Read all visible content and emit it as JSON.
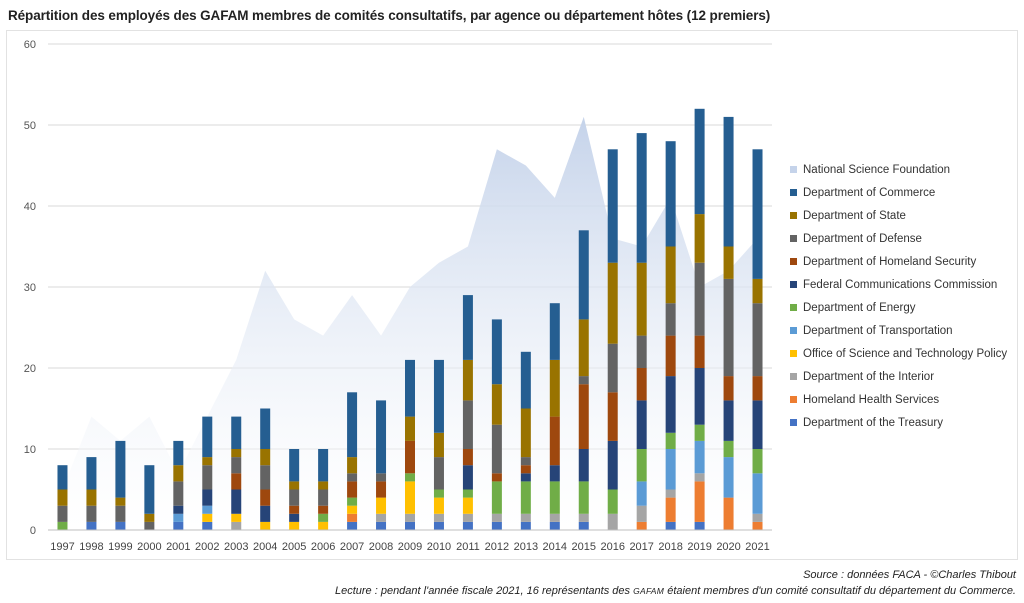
{
  "title": "Répartition des employés des GAFAM membres de comités consultatifs, par agence ou département hôtes (12 premiers)",
  "source": "Source : données FACA - ©Charles Thibout",
  "note": {
    "before": "Lecture : pendant l'année fiscale 2021, 16 représentants des",
    "acronym": "GAFAM",
    "after": "étaient membres d'un comité consultatif du département du Commerce."
  },
  "chart_data": {
    "type": "bar",
    "stacked": true,
    "categories": [
      "1997",
      "1998",
      "1999",
      "2000",
      "2001",
      "2002",
      "2003",
      "2004",
      "2005",
      "2006",
      "2007",
      "2008",
      "2009",
      "2010",
      "2011",
      "2012",
      "2013",
      "2014",
      "2015",
      "2016",
      "2017",
      "2018",
      "2019",
      "2020",
      "2021"
    ],
    "ylim": [
      0,
      60
    ],
    "yticks": [
      0,
      10,
      20,
      30,
      40,
      50,
      60
    ],
    "grid": true,
    "legend_position": "right",
    "area": {
      "name": "National Science Foundation",
      "color": "#c5d3ea",
      "values": [
        5,
        14,
        11,
        14,
        7,
        14,
        21,
        32,
        26,
        24,
        29,
        24,
        30,
        33,
        35,
        47,
        45,
        41,
        51,
        36,
        35,
        41,
        30,
        32,
        36
      ]
    },
    "series": [
      {
        "name": "Department of the Treasury",
        "color": "#4472c4",
        "values": [
          0,
          1,
          1,
          0,
          1,
          1,
          0,
          0,
          0,
          0,
          1,
          1,
          1,
          1,
          1,
          1,
          1,
          1,
          1,
          0,
          0,
          1,
          1,
          0,
          0
        ]
      },
      {
        "name": "Homeland Health Services",
        "color": "#ed7d31",
        "values": [
          0,
          0,
          0,
          0,
          0,
          0,
          0,
          0,
          0,
          0,
          1,
          0,
          0,
          0,
          0,
          0,
          0,
          0,
          0,
          0,
          1,
          3,
          5,
          4,
          1
        ]
      },
      {
        "name": "Department of the Interior",
        "color": "#a5a5a5",
        "values": [
          0,
          0,
          0,
          0,
          0,
          0,
          1,
          0,
          0,
          0,
          0,
          1,
          1,
          1,
          1,
          1,
          1,
          1,
          1,
          2,
          2,
          1,
          1,
          0,
          1
        ]
      },
      {
        "name": "Office of Science and Technology Policy",
        "color": "#ffc000",
        "values": [
          0,
          0,
          0,
          0,
          0,
          1,
          1,
          1,
          1,
          1,
          1,
          2,
          4,
          2,
          2,
          0,
          0,
          0,
          0,
          0,
          0,
          0,
          0,
          0,
          0
        ]
      },
      {
        "name": "Department of Transportation",
        "color": "#5b9bd5",
        "values": [
          0,
          0,
          0,
          0,
          1,
          1,
          0,
          0,
          0,
          0,
          0,
          0,
          0,
          0,
          0,
          0,
          0,
          0,
          0,
          0,
          3,
          5,
          4,
          5,
          5
        ]
      },
      {
        "name": "Department of Energy",
        "color": "#70ad47",
        "values": [
          1,
          0,
          0,
          0,
          0,
          0,
          0,
          0,
          0,
          1,
          1,
          0,
          1,
          1,
          1,
          4,
          4,
          4,
          4,
          3,
          4,
          2,
          2,
          2,
          3
        ]
      },
      {
        "name": "Federal Communications Commission",
        "color": "#264478",
        "values": [
          0,
          0,
          0,
          0,
          1,
          2,
          3,
          2,
          1,
          0,
          0,
          0,
          0,
          0,
          3,
          0,
          1,
          2,
          4,
          6,
          6,
          7,
          7,
          5,
          6
        ]
      },
      {
        "name": "Department of Homeland Security",
        "color": "#9e480e",
        "values": [
          0,
          0,
          0,
          0,
          0,
          0,
          2,
          2,
          1,
          1,
          2,
          2,
          4,
          0,
          2,
          1,
          1,
          6,
          8,
          6,
          4,
          5,
          4,
          3,
          3
        ]
      },
      {
        "name": "Department of Defense",
        "color": "#636363",
        "values": [
          2,
          2,
          2,
          1,
          3,
          3,
          2,
          3,
          2,
          2,
          1,
          1,
          0,
          4,
          6,
          6,
          1,
          0,
          1,
          6,
          4,
          4,
          9,
          12,
          9
        ]
      },
      {
        "name": "Department of State",
        "color": "#997300",
        "values": [
          2,
          2,
          1,
          1,
          2,
          1,
          1,
          2,
          1,
          1,
          2,
          0,
          3,
          3,
          5,
          5,
          6,
          7,
          7,
          10,
          9,
          7,
          6,
          4,
          3
        ]
      },
      {
        "name": "Department of Commerce",
        "color": "#255e91",
        "values": [
          3,
          4,
          7,
          6,
          3,
          5,
          4,
          5,
          4,
          4,
          8,
          9,
          7,
          9,
          8,
          8,
          7,
          7,
          11,
          14,
          16,
          13,
          13,
          16,
          16
        ]
      }
    ],
    "legend": [
      {
        "name": "National Science Foundation",
        "color": "#c5d3ea"
      },
      {
        "name": "Department of Commerce",
        "color": "#255e91"
      },
      {
        "name": "Department of State",
        "color": "#997300"
      },
      {
        "name": "Department of Defense",
        "color": "#636363"
      },
      {
        "name": "Department of Homeland Security",
        "color": "#9e480e"
      },
      {
        "name": "Federal Communications Commission",
        "color": "#264478"
      },
      {
        "name": "Department of Energy",
        "color": "#70ad47"
      },
      {
        "name": "Department of Transportation",
        "color": "#5b9bd5"
      },
      {
        "name": "Office of Science and Technology Policy",
        "color": "#ffc000"
      },
      {
        "name": "Department of the Interior",
        "color": "#a5a5a5"
      },
      {
        "name": "Homeland Health Services",
        "color": "#ed7d31"
      },
      {
        "name": "Department of the Treasury",
        "color": "#4472c4"
      }
    ]
  }
}
